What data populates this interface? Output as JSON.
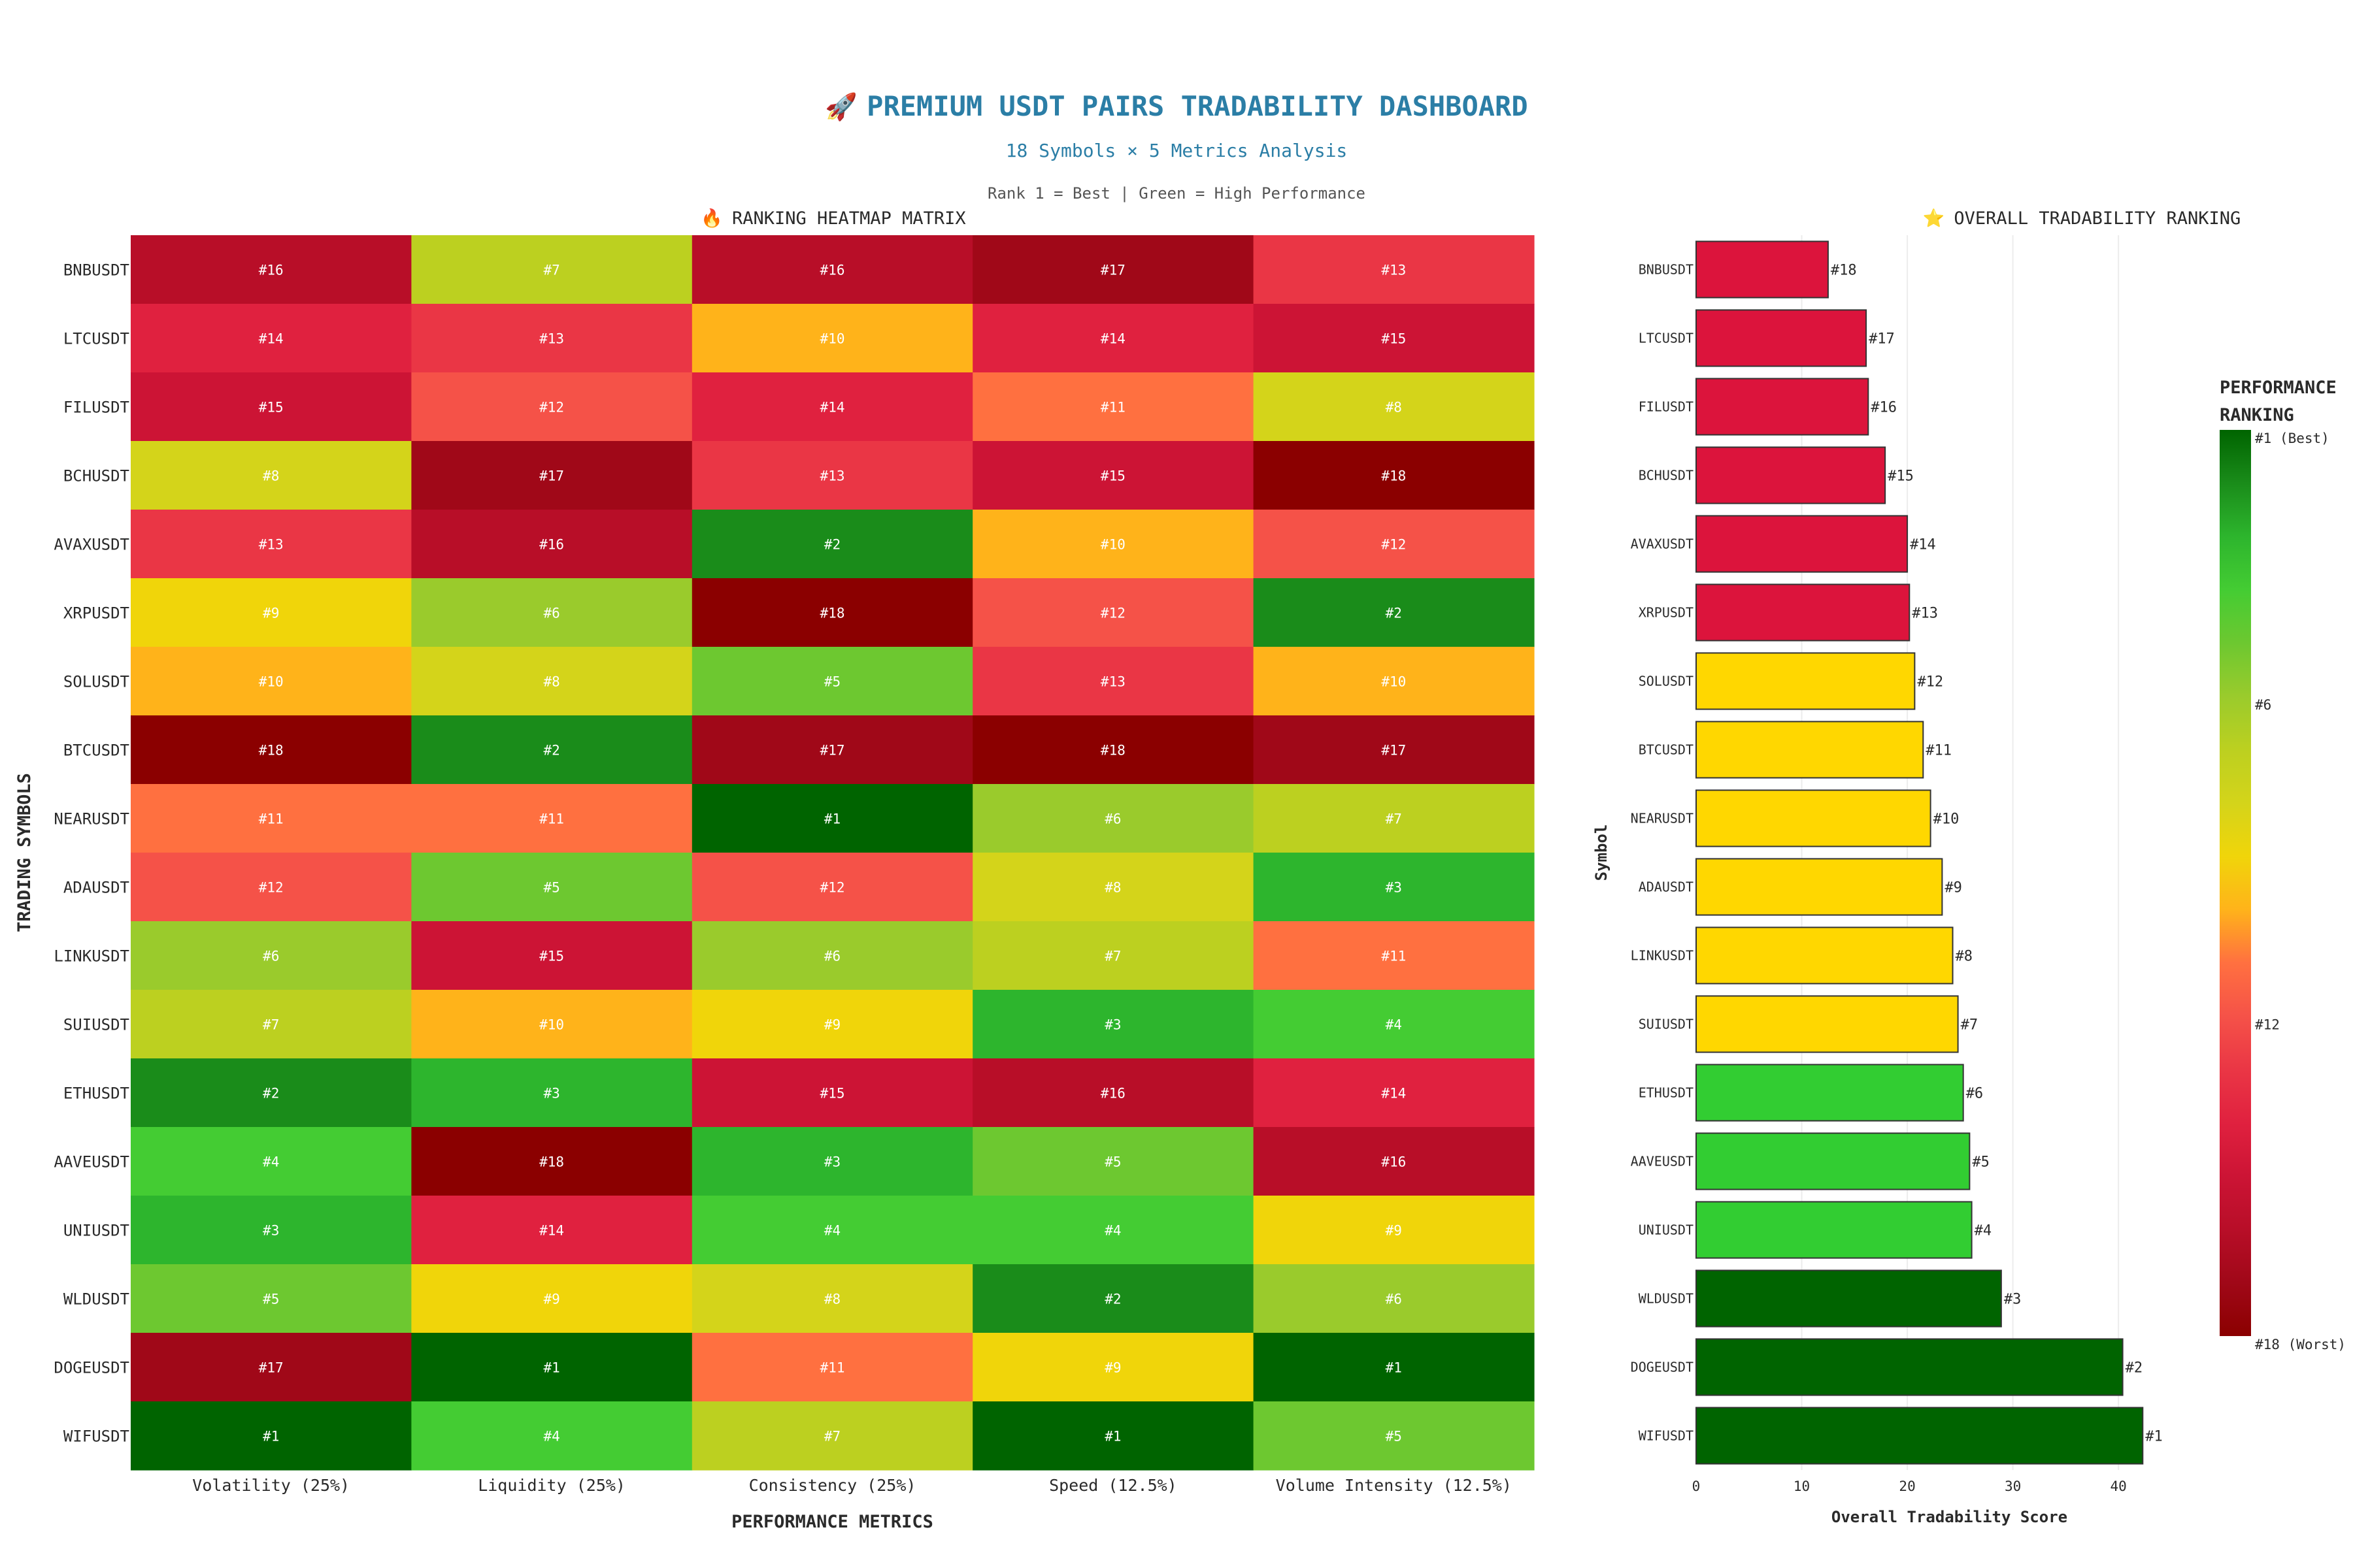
{
  "header": {
    "title_icon": "rocket-icon",
    "title_emoji": "🚀",
    "title": "PREMIUM USDT PAIRS TRADABILITY DASHBOARD",
    "subtitle": "18 Symbols × 5 Metrics Analysis",
    "note": "Rank 1 = Best | Green = High Performance"
  },
  "heatmap_panel": {
    "icon": "fire-icon",
    "emoji": "🔥",
    "title": "RANKING HEATMAP MATRIX"
  },
  "ranking_panel": {
    "icon": "star-icon",
    "emoji": "⭐",
    "title": "OVERALL TRADABILITY RANKING"
  },
  "colors": {
    "rank_scale": [
      "#006400",
      "#1a8c1a",
      "#2db52d",
      "#44cc33",
      "#6dc830",
      "#9acb2c",
      "#bcd020",
      "#d4d41a",
      "#f0d50a",
      "#ffb31a",
      "#ff7040",
      "#f55248",
      "#ea3645",
      "#e0213f",
      "#cc1435",
      "#b80e28",
      "#a00818",
      "#8b0000"
    ],
    "bar_red": "#dc143c",
    "bar_gold": "#ffd700",
    "bar_green": "#32cd32",
    "bar_darkgreen": "#006400"
  },
  "chart_data": [
    {
      "type": "heatmap",
      "title": "RANKING HEATMAP MATRIX",
      "xlabel": "PERFORMANCE METRICS",
      "ylabel": "TRADING SYMBOLS",
      "x_categories": [
        "Volatility (25%)",
        "Liquidity (25%)",
        "Consistency (25%)",
        "Speed (12.5%)",
        "Volume Intensity (12.5%)"
      ],
      "y_categories": [
        "BNBUSDT",
        "LTCUSDT",
        "FILUSDT",
        "BCHUSDT",
        "AVAXUSDT",
        "XRPUSDT",
        "SOLUSDT",
        "BTCUSDT",
        "NEARUSDT",
        "ADAUSDT",
        "LINKUSDT",
        "SUIUSDT",
        "ETHUSDT",
        "AAVEUSDT",
        "UNIUSDT",
        "WLDUSDT",
        "DOGEUSDT",
        "WIFUSDT"
      ],
      "values": [
        [
          16,
          7,
          16,
          17,
          13
        ],
        [
          14,
          13,
          10,
          14,
          15
        ],
        [
          15,
          12,
          14,
          11,
          8
        ],
        [
          8,
          17,
          13,
          15,
          18
        ],
        [
          13,
          16,
          2,
          10,
          12
        ],
        [
          9,
          6,
          18,
          12,
          2
        ],
        [
          10,
          8,
          5,
          13,
          10
        ],
        [
          18,
          2,
          17,
          18,
          17
        ],
        [
          11,
          11,
          1,
          6,
          7
        ],
        [
          12,
          5,
          12,
          8,
          3
        ],
        [
          6,
          15,
          6,
          7,
          11
        ],
        [
          7,
          10,
          9,
          3,
          4
        ],
        [
          2,
          3,
          15,
          16,
          14
        ],
        [
          4,
          18,
          3,
          5,
          16
        ],
        [
          3,
          14,
          4,
          4,
          9
        ],
        [
          5,
          9,
          8,
          2,
          6
        ],
        [
          17,
          1,
          11,
          9,
          1
        ],
        [
          1,
          4,
          7,
          1,
          5
        ]
      ],
      "label_prefix": "#",
      "colorbar": {
        "title": [
          "PERFORMANCE",
          "RANKING"
        ],
        "range": [
          1,
          18
        ],
        "ticks": [
          {
            "value": 1,
            "label": "#1 (Best)"
          },
          {
            "value": 6,
            "label": "#6"
          },
          {
            "value": 12,
            "label": "#12"
          },
          {
            "value": 18,
            "label": "#18 (Worst)"
          }
        ]
      }
    },
    {
      "type": "bar",
      "orientation": "horizontal",
      "title": "OVERALL TRADABILITY RANKING",
      "xlabel": "Overall Tradability Score",
      "ylabel": "Symbol",
      "categories": [
        "BNBUSDT",
        "LTCUSDT",
        "FILUSDT",
        "BCHUSDT",
        "AVAXUSDT",
        "XRPUSDT",
        "SOLUSDT",
        "BTCUSDT",
        "NEARUSDT",
        "ADAUSDT",
        "LINKUSDT",
        "SUIUSDT",
        "ETHUSDT",
        "AAVEUSDT",
        "UNIUSDT",
        "WLDUSDT",
        "DOGEUSDT",
        "WIFUSDT"
      ],
      "values": [
        12.5,
        16.1,
        16.3,
        17.9,
        20.0,
        20.2,
        20.7,
        21.5,
        22.2,
        23.3,
        24.3,
        24.8,
        25.3,
        25.9,
        26.1,
        28.9,
        40.4,
        42.3
      ],
      "ranks": [
        "#18",
        "#17",
        "#16",
        "#15",
        "#14",
        "#13",
        "#12",
        "#11",
        "#10",
        "#9",
        "#8",
        "#7",
        "#6",
        "#5",
        "#4",
        "#3",
        "#2",
        "#1"
      ],
      "bar_colors": [
        "red",
        "red",
        "red",
        "red",
        "red",
        "red",
        "gold",
        "gold",
        "gold",
        "gold",
        "gold",
        "gold",
        "green",
        "green",
        "green",
        "darkgreen",
        "darkgreen",
        "darkgreen"
      ],
      "xlim": [
        0,
        45.5
      ],
      "xticks": [
        0,
        10,
        20,
        30,
        40
      ],
      "grid": true
    }
  ]
}
